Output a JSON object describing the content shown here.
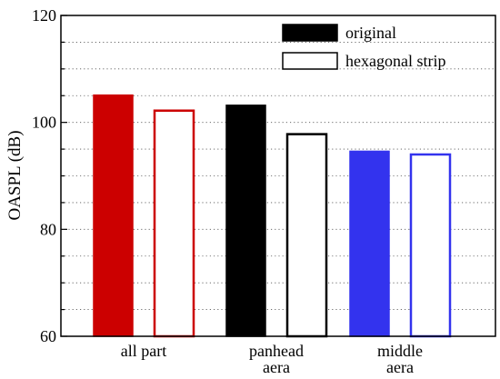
{
  "chart_data": {
    "type": "bar",
    "categories": [
      [
        "all part"
      ],
      [
        "panhead",
        "aera"
      ],
      [
        "middle",
        "aera"
      ]
    ],
    "series": [
      {
        "name": "original",
        "values": [
          105.1,
          103.2,
          94.6
        ]
      },
      {
        "name": "hexagonal strip",
        "values": [
          102.2,
          97.8,
          94.0
        ]
      }
    ],
    "category_colors": [
      "#cc0000",
      "#000000",
      "#3333ee"
    ],
    "ylabel": "OASPL (dB)",
    "xlabel": "",
    "ylim": [
      60,
      120
    ],
    "yticks": [
      60,
      80,
      100,
      120
    ],
    "grid": {
      "y": true,
      "style": "dotted"
    },
    "legend_position": "top-right",
    "legend_markers": {
      "original": "#000000",
      "hexagonal strip": "#ffffff"
    }
  }
}
